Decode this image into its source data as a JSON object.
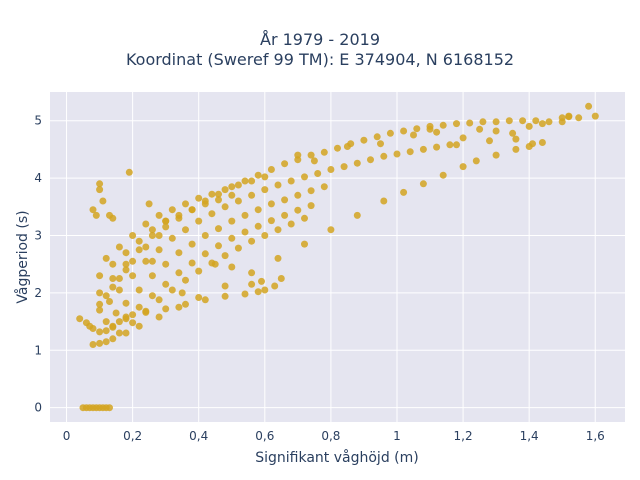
{
  "chart_data": {
    "type": "scatter",
    "title_lines": [
      "År 1979 - 2019",
      "Koordinat (Sweref 99 TM): E 374904, N 6168152"
    ],
    "xlabel": "Signifikant våghöjd (m)",
    "ylabel": "Vågperiod (s)",
    "xlim": [
      -0.05,
      1.69
    ],
    "ylim": [
      -0.25,
      5.5
    ],
    "xticks": [
      0,
      0.2,
      0.4,
      0.6,
      0.8,
      1,
      1.2,
      1.4,
      1.6
    ],
    "xtick_labels": [
      "0",
      "0,2",
      "0,4",
      "0,6",
      "0,8",
      "1",
      "1,2",
      "1,4",
      "1,6"
    ],
    "yticks": [
      0,
      1,
      2,
      3,
      4,
      5
    ],
    "ytick_labels": [
      "0",
      "1",
      "2",
      "3",
      "4",
      "5"
    ],
    "grid": true,
    "marker_color": "#d4a521",
    "background_color": "#e5e5f0",
    "series": [
      {
        "x": [
          0.05,
          0.06,
          0.07,
          0.08,
          0.09,
          0.1,
          0.11,
          0.12,
          0.13,
          0.04,
          0.06,
          0.07,
          0.08,
          0.1,
          0.12,
          0.14,
          0.16,
          0.18,
          0.2,
          0.24,
          0.3,
          0.36,
          0.42,
          0.48,
          0.54,
          0.58,
          0.6,
          0.63,
          0.08,
          0.1,
          0.12,
          0.14,
          0.18,
          0.22,
          0.28,
          0.34,
          0.4,
          0.48,
          0.56,
          0.64,
          0.72,
          0.8,
          0.88,
          0.96,
          1.02,
          1.08,
          1.14,
          1.2,
          1.24,
          1.3,
          1.36,
          1.4,
          1.44,
          0.1,
          0.14,
          0.18,
          0.22,
          0.26,
          0.3,
          0.34,
          0.38,
          0.42,
          0.46,
          0.5,
          0.54,
          0.58,
          0.62,
          0.66,
          0.7,
          0.74,
          0.78,
          0.82,
          0.86,
          0.9,
          0.94,
          0.98,
          1.02,
          1.06,
          1.1,
          1.14,
          1.18,
          1.22,
          1.26,
          1.3,
          1.34,
          1.38,
          1.42,
          1.46,
          1.5,
          1.52,
          1.55,
          1.58,
          1.6,
          0.1,
          0.13,
          0.16,
          0.2,
          0.24,
          0.28,
          0.32,
          0.36,
          0.4,
          0.44,
          0.48,
          0.52,
          0.56,
          0.6,
          0.64,
          0.68,
          0.72,
          0.76,
          0.8,
          0.84,
          0.88,
          0.92,
          0.96,
          1.0,
          1.04,
          1.08,
          1.12,
          1.16,
          0.12,
          0.15,
          0.18,
          0.22,
          0.26,
          0.3,
          0.34,
          0.38,
          0.42,
          0.46,
          0.5,
          0.54,
          0.58,
          0.62,
          0.66,
          0.7,
          0.74,
          0.78,
          0.14,
          0.18,
          0.22,
          0.26,
          0.3,
          0.34,
          0.38,
          0.42,
          0.46,
          0.5,
          0.54,
          0.58,
          0.62,
          0.66,
          0.7,
          0.74,
          0.16,
          0.2,
          0.24,
          0.28,
          0.32,
          0.36,
          0.4,
          0.44,
          0.48,
          0.52,
          0.56,
          0.6,
          0.64,
          0.68,
          0.72,
          0.12,
          0.16,
          0.2,
          0.24,
          0.28,
          0.32,
          0.36,
          0.4,
          0.44,
          0.48,
          0.52,
          0.56,
          0.6,
          0.1,
          0.14,
          0.18,
          0.22,
          0.26,
          0.3,
          0.34,
          0.38,
          0.42,
          0.46,
          0.5,
          0.1,
          0.12,
          0.14,
          0.16,
          0.18,
          0.2,
          0.24,
          0.28,
          0.09,
          0.1,
          0.11,
          0.13,
          0.1,
          0.08,
          0.14,
          0.19,
          0.25,
          0.3,
          0.26,
          0.35,
          0.45,
          0.5,
          0.59,
          0.56,
          0.65,
          0.7,
          0.75,
          0.85,
          0.95,
          1.05,
          1.1,
          1.12,
          1.2,
          1.25,
          1.3,
          1.35,
          1.4,
          1.44,
          1.52,
          1.5,
          1.41,
          1.36,
          1.28,
          1.18
        ],
        "y": [
          0,
          0,
          0,
          0,
          0,
          0,
          0,
          0,
          0,
          1.55,
          1.48,
          1.42,
          1.38,
          1.32,
          1.34,
          1.42,
          1.5,
          1.58,
          1.62,
          1.66,
          1.72,
          1.8,
          1.88,
          1.94,
          1.98,
          2.02,
          2.05,
          2.12,
          1.1,
          1.12,
          1.15,
          1.2,
          1.3,
          1.42,
          1.58,
          1.75,
          1.92,
          2.12,
          2.35,
          2.6,
          2.85,
          3.1,
          3.35,
          3.6,
          3.75,
          3.9,
          4.05,
          4.2,
          4.3,
          4.4,
          4.5,
          4.55,
          4.62,
          2.0,
          2.25,
          2.5,
          2.75,
          3.0,
          3.15,
          3.3,
          3.45,
          3.6,
          3.72,
          3.85,
          3.95,
          4.05,
          4.15,
          4.25,
          4.32,
          4.4,
          4.45,
          4.52,
          4.6,
          4.66,
          4.72,
          4.78,
          4.82,
          4.86,
          4.9,
          4.92,
          4.95,
          4.96,
          4.98,
          4.98,
          5.0,
          5.0,
          5.0,
          4.98,
          5.05,
          5.07,
          5.05,
          5.25,
          5.08,
          1.7,
          1.85,
          2.05,
          2.3,
          2.55,
          2.75,
          2.95,
          3.1,
          3.25,
          3.38,
          3.5,
          3.6,
          3.7,
          3.8,
          3.88,
          3.95,
          4.02,
          4.08,
          4.15,
          4.2,
          4.26,
          4.32,
          4.38,
          4.42,
          4.46,
          4.5,
          4.54,
          4.58,
          1.5,
          1.65,
          1.82,
          2.05,
          2.3,
          2.5,
          2.7,
          2.85,
          3.0,
          3.12,
          3.25,
          3.35,
          3.45,
          3.55,
          3.62,
          3.7,
          3.78,
          3.85,
          1.4,
          1.55,
          1.75,
          1.95,
          2.15,
          2.35,
          2.52,
          2.68,
          2.82,
          2.95,
          3.06,
          3.16,
          3.26,
          3.35,
          3.44,
          3.52,
          1.3,
          1.48,
          1.68,
          1.88,
          2.05,
          2.22,
          2.38,
          2.52,
          2.65,
          2.78,
          2.9,
          3.0,
          3.1,
          3.2,
          3.3,
          2.6,
          2.8,
          3.0,
          3.2,
          3.35,
          3.45,
          3.55,
          3.65,
          3.72,
          3.8,
          3.88,
          3.95,
          4.02,
          2.3,
          2.5,
          2.7,
          2.9,
          3.1,
          3.25,
          3.35,
          3.45,
          3.55,
          3.62,
          3.7,
          1.8,
          1.95,
          2.1,
          2.25,
          2.4,
          2.55,
          2.8,
          3.0,
          3.35,
          3.9,
          3.6,
          3.35,
          3.8,
          3.45,
          3.3,
          4.1,
          3.55,
          3.25,
          2.55,
          2.0,
          2.5,
          2.45,
          2.2,
          2.15,
          2.25,
          4.4,
          4.3,
          4.55,
          4.6,
          4.75,
          4.85,
          4.8,
          4.7,
          4.85,
          4.82,
          4.78,
          4.9,
          4.95,
          5.08,
          4.98,
          4.6,
          4.68,
          4.65,
          4.58
        ]
      }
    ]
  }
}
